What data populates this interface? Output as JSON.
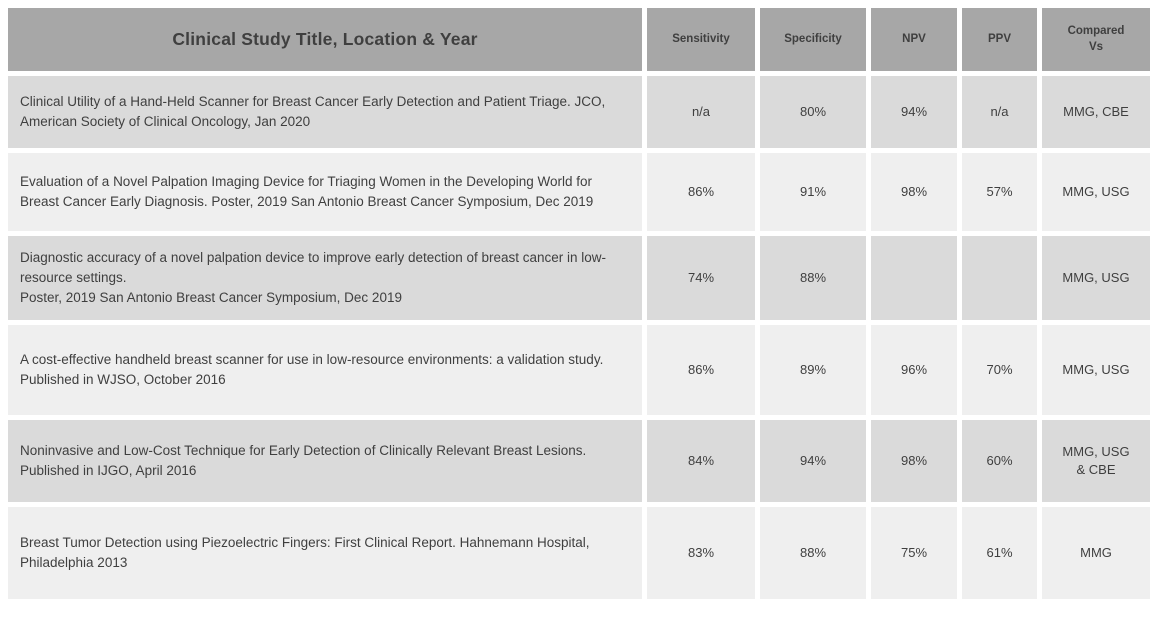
{
  "colors": {
    "header_bg": "#a7a7a7",
    "row_dark_bg": "#dadada",
    "row_light_bg": "#efefef",
    "text": "#3f3f3f",
    "page_bg": "#ffffff"
  },
  "table": {
    "header": {
      "title_col": "Clinical Study Title, Location & Year",
      "sensitivity": "Sensitivity",
      "specificity": "Specificity",
      "npv": "NPV",
      "ppv": "PPV",
      "compared_vs": "Compared\nVs"
    },
    "rows": [
      {
        "title": "Clinical Utility of a Hand-Held Scanner for Breast Cancer Early Detection and Patient Triage. JCO, American Society of Clinical Oncology, Jan 2020",
        "sensitivity": "n/a",
        "specificity": "80%",
        "npv": "94%",
        "ppv": "n/a",
        "compared_vs": "MMG, CBE"
      },
      {
        "title": "Evaluation of a Novel Palpation Imaging Device for Triaging Women in the Developing World for Breast Cancer Early Diagnosis. Poster, 2019 San Antonio Breast Cancer Symposium, Dec 2019",
        "sensitivity": "86%",
        "specificity": "91%",
        "npv": "98%",
        "ppv": "57%",
        "compared_vs": "MMG, USG"
      },
      {
        "title": "Diagnostic accuracy of a novel palpation device to improve early detection of breast cancer in low-resource settings.\nPoster, 2019 San Antonio Breast Cancer Symposium, Dec 2019",
        "sensitivity": "74%",
        "specificity": "88%",
        "npv": "",
        "ppv": "",
        "compared_vs": "MMG, USG"
      },
      {
        "title": "A cost-effective handheld breast scanner for use in low-resource environments: a validation study. Published in WJSO, October 2016",
        "sensitivity": "86%",
        "specificity": "89%",
        "npv": "96%",
        "ppv": "70%",
        "compared_vs": "MMG, USG"
      },
      {
        "title": "Noninvasive and Low-Cost Technique for Early Detection of Clinically Relevant Breast Lesions. Published in IJGO, April 2016",
        "sensitivity": "84%",
        "specificity": "94%",
        "npv": "98%",
        "ppv": "60%",
        "compared_vs": "MMG, USG\n& CBE"
      },
      {
        "title": "Breast Tumor Detection using Piezoelectric Fingers: First Clinical Report. Hahnemann Hospital, Philadelphia 2013",
        "sensitivity": "83%",
        "specificity": "88%",
        "npv": "75%",
        "ppv": "61%",
        "compared_vs": "MMG"
      }
    ]
  }
}
